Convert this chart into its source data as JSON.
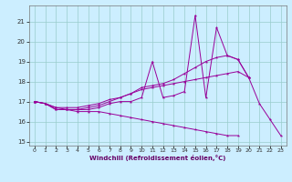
{
  "xlabel": "Windchill (Refroidissement éolien,°C)",
  "background_color": "#cceeff",
  "grid_color": "#99cccc",
  "line_color": "#990099",
  "xlim": [
    -0.5,
    23.5
  ],
  "ylim": [
    14.8,
    21.8
  ],
  "yticks": [
    15,
    16,
    17,
    18,
    19,
    20,
    21
  ],
  "xticks": [
    0,
    1,
    2,
    3,
    4,
    5,
    6,
    7,
    8,
    9,
    10,
    11,
    12,
    13,
    14,
    15,
    16,
    17,
    18,
    19,
    20,
    21,
    22,
    23
  ],
  "lines": [
    [
      17.0,
      16.9,
      16.6,
      16.6,
      16.6,
      16.6,
      16.7,
      16.9,
      17.0,
      17.0,
      17.2,
      19.0,
      17.2,
      17.3,
      17.5,
      21.3,
      17.2,
      20.7,
      19.3,
      19.1,
      18.2,
      16.9,
      16.1,
      15.3
    ],
    [
      17.0,
      16.9,
      16.6,
      16.6,
      16.6,
      16.7,
      16.8,
      17.0,
      17.2,
      17.4,
      17.7,
      17.8,
      17.9,
      18.1,
      18.4,
      18.7,
      19.0,
      19.2,
      19.3,
      19.1,
      18.2,
      null,
      null,
      null
    ],
    [
      17.0,
      16.9,
      16.7,
      16.7,
      16.7,
      16.8,
      16.9,
      17.1,
      17.2,
      17.4,
      17.6,
      17.7,
      17.8,
      17.9,
      18.0,
      18.1,
      18.2,
      18.3,
      18.4,
      18.5,
      18.2,
      null,
      null,
      null
    ],
    [
      17.0,
      16.9,
      16.7,
      16.6,
      16.5,
      16.5,
      16.5,
      16.4,
      16.3,
      16.2,
      16.1,
      16.0,
      15.9,
      15.8,
      15.7,
      15.6,
      15.5,
      15.4,
      15.3,
      15.3,
      null,
      null,
      null,
      null
    ]
  ]
}
